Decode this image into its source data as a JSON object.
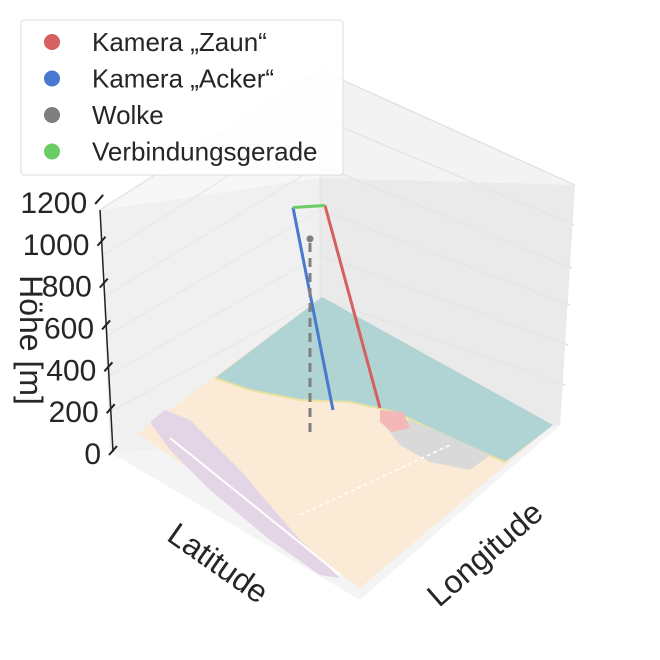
{
  "chart_data": {
    "type": "3d-line",
    "zlabel": "Höhe [m]",
    "xlabel": "Latitude",
    "ylabel": "Longitude",
    "zlim": [
      0,
      1300
    ],
    "z_ticks": [
      "0",
      "200",
      "400",
      "600",
      "800",
      "1000",
      "1200"
    ],
    "z_tick_values": [
      0,
      200,
      400,
      600,
      800,
      1000,
      1200
    ],
    "grid": true,
    "legend_position": "top-left",
    "basemap": "OpenStreetMap tile (water, land, residential area)",
    "series": [
      {
        "name": "Kamera „Zaun“",
        "color": "#d65f5f",
        "marker": "circle",
        "path_z": [
          0,
          1290
        ]
      },
      {
        "name": "Kamera „Acker“",
        "color": "#4878d0",
        "marker": "circle",
        "path_z": [
          0,
          1290
        ]
      },
      {
        "name": "Wolke",
        "color": "#7f7f7f",
        "marker": "circle",
        "style": "dashed",
        "path_z": [
          0,
          1230
        ]
      },
      {
        "name": "Verbindungsgerade",
        "color": "#6acc64",
        "marker": "circle",
        "path_z": [
          1290,
          1230
        ]
      }
    ]
  },
  "colors": {
    "pane": "#f2f2f2",
    "grid": "#e3e3e3",
    "water": "#b0d3d3",
    "land": "#fbead6",
    "residential": "#e0d5e5"
  }
}
